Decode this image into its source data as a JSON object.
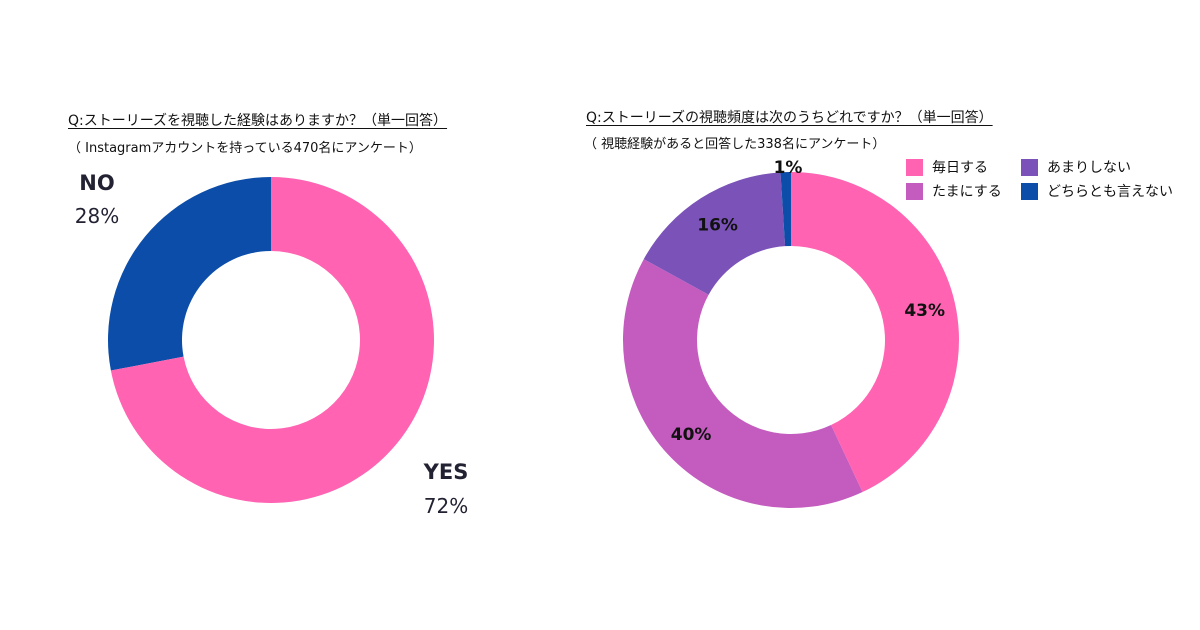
{
  "chart_data": [
    {
      "type": "pie",
      "title": "Q:ストーリーズを視聴した経験はありますか？（単一回答）",
      "subtitle": "（ Instagramアカウントを持っている470名にアンケート）",
      "categories": [
        "NO",
        "YES"
      ],
      "values": [
        28,
        72
      ],
      "value_labels": [
        "28%",
        "72%"
      ],
      "colors": [
        "#0B4DA8",
        "#FF63B2"
      ],
      "legend": "none"
    },
    {
      "type": "pie",
      "title": "Q:ストーリーズの視聴頻度は次のうちどれですか？（単一回答）",
      "subtitle": "（ 視聴経験があると回答した338名にアンケート）",
      "categories": [
        "毎日する",
        "たまにする",
        "あまりしない",
        "どちらとも言えない"
      ],
      "values": [
        43,
        40,
        16,
        1
      ],
      "value_labels": [
        "43%",
        "40%",
        "16%",
        "1%"
      ],
      "colors": [
        "#FF63B2",
        "#C45BBF",
        "#7A52B8",
        "#0B4DA8"
      ],
      "legend": "top-right"
    }
  ]
}
